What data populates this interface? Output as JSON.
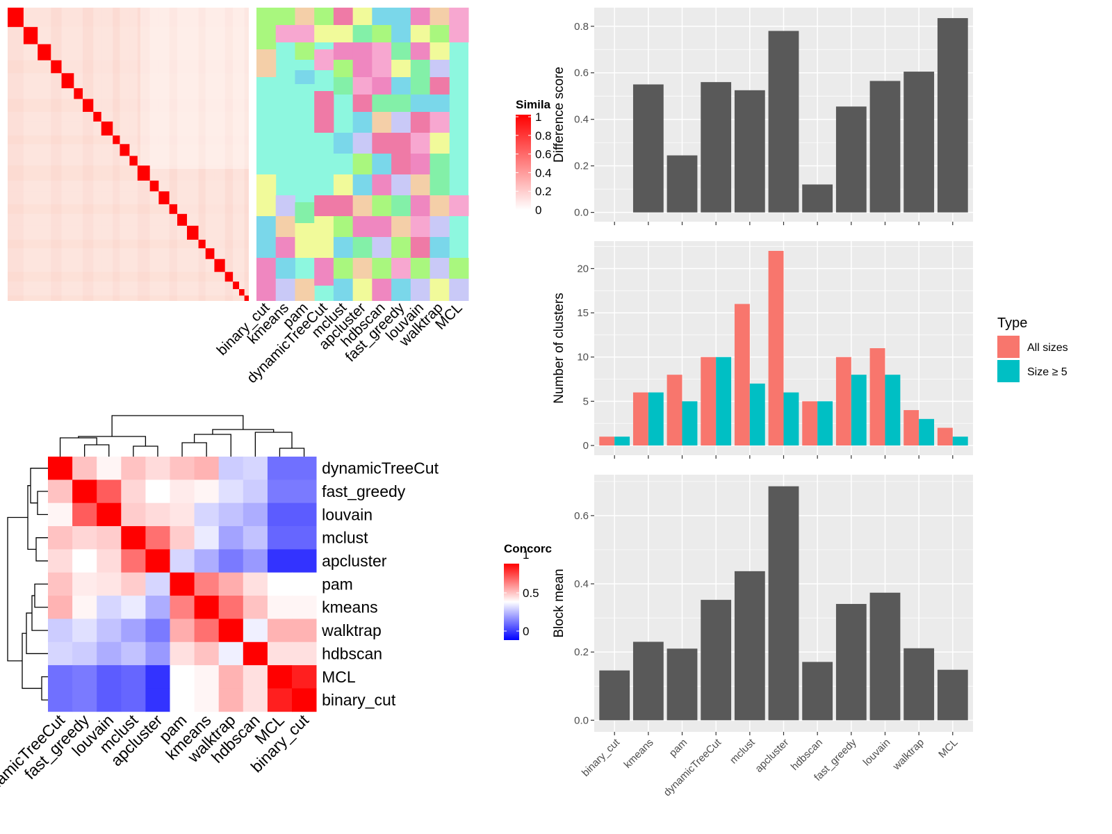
{
  "colors": {
    "panel_bg": "#ebebeb",
    "grid": "#ffffff",
    "bar_dark": "#595959",
    "all_sizes": "#f8766d",
    "size_ge5": "#00bfc4",
    "heat_red": "#ff0000",
    "heat_white": "#ffffff",
    "heat_blue": "#0000ff"
  },
  "similarity_heatmap": {
    "legend_title": "Simila",
    "legend_ticks": [
      "1",
      "0.8",
      "0.6",
      "0.4",
      "0.2",
      "0"
    ],
    "method_labels": [
      "binary_cut",
      "kmeans",
      "pam",
      "dynamicTreeCut",
      "mclust",
      "apcluster",
      "hdbscan",
      "fast_greedy",
      "louvain",
      "walktrap",
      "MCL"
    ],
    "method_label_icon": "rotated-column-labels",
    "cluster_palette": [
      "#8df7df",
      "#f7a7d0",
      "#f1fa9a",
      "#7ad7ea",
      "#ef87c0",
      "#a9f77e",
      "#f4cfa8",
      "#83f0a8",
      "#c9c9f7",
      "#ef7aa6"
    ]
  },
  "concordance_heatmap": {
    "legend_title": "Concorc",
    "legend_ticks": [
      "1",
      "0.5",
      "0"
    ],
    "methods": [
      "dynamicTreeCut",
      "fast_greedy",
      "louvain",
      "mclust",
      "apcluster",
      "pam",
      "kmeans",
      "walktrap",
      "hdbscan",
      "MCL",
      "binary_cut"
    ],
    "matrix": [
      [
        1.0,
        0.62,
        0.52,
        0.62,
        0.57,
        0.62,
        0.65,
        0.4,
        0.42,
        0.22,
        0.22
      ],
      [
        0.62,
        1.0,
        0.82,
        0.58,
        0.5,
        0.54,
        0.52,
        0.44,
        0.4,
        0.24,
        0.24
      ],
      [
        0.52,
        0.82,
        1.0,
        0.6,
        0.57,
        0.55,
        0.42,
        0.38,
        0.34,
        0.18,
        0.18
      ],
      [
        0.62,
        0.58,
        0.6,
        1.0,
        0.78,
        0.6,
        0.46,
        0.32,
        0.38,
        0.2,
        0.2
      ],
      [
        0.57,
        0.5,
        0.57,
        0.78,
        1.0,
        0.42,
        0.34,
        0.24,
        0.3,
        0.1,
        0.1
      ],
      [
        0.62,
        0.54,
        0.55,
        0.6,
        0.42,
        1.0,
        0.75,
        0.66,
        0.56,
        0.5,
        0.5
      ],
      [
        0.65,
        0.52,
        0.42,
        0.46,
        0.34,
        0.75,
        1.0,
        0.78,
        0.62,
        0.52,
        0.52
      ],
      [
        0.4,
        0.44,
        0.38,
        0.32,
        0.24,
        0.66,
        0.78,
        1.0,
        0.47,
        0.65,
        0.65
      ],
      [
        0.42,
        0.4,
        0.34,
        0.38,
        0.3,
        0.56,
        0.62,
        0.47,
        1.0,
        0.56,
        0.56
      ],
      [
        0.22,
        0.24,
        0.18,
        0.2,
        0.1,
        0.5,
        0.52,
        0.65,
        0.56,
        1.0,
        0.94
      ],
      [
        0.22,
        0.24,
        0.18,
        0.2,
        0.1,
        0.5,
        0.52,
        0.65,
        0.56,
        0.94,
        1.0
      ]
    ]
  },
  "chart_data": [
    {
      "type": "bar",
      "categories": [
        "binary_cut",
        "kmeans",
        "pam",
        "dynamicTreeCut",
        "mclust",
        "apcluster",
        "hdbscan",
        "fast_greedy",
        "louvain",
        "walktrap",
        "MCL"
      ],
      "values": [
        0.0,
        0.55,
        0.245,
        0.56,
        0.525,
        0.78,
        0.12,
        0.455,
        0.565,
        0.605,
        0.835
      ],
      "ylabel": "Difference score",
      "xlabel": "",
      "ylim": [
        -0.04,
        0.88
      ],
      "yticks": [
        "0.0",
        "0.2",
        "0.4",
        "0.6",
        "0.8"
      ],
      "grid": true
    },
    {
      "type": "bar",
      "categories": [
        "binary_cut",
        "kmeans",
        "pam",
        "dynamicTreeCut",
        "mclust",
        "apcluster",
        "hdbscan",
        "fast_greedy",
        "louvain",
        "walktrap",
        "MCL"
      ],
      "series": [
        {
          "name": "All sizes",
          "values": [
            1,
            6,
            8,
            10,
            16,
            22,
            5,
            10,
            11,
            4,
            2
          ]
        },
        {
          "name": "Size ≥ 5",
          "values": [
            1,
            6,
            5,
            10,
            7,
            6,
            5,
            8,
            8,
            3,
            1
          ]
        }
      ],
      "ylabel": "Number of clusters",
      "xlabel": "",
      "ylim": [
        -1.1,
        23.1
      ],
      "yticks": [
        "0",
        "5",
        "10",
        "15",
        "20"
      ],
      "legend_title": "Type",
      "legend_position": "right",
      "grid": true
    },
    {
      "type": "bar",
      "categories": [
        "binary_cut",
        "kmeans",
        "pam",
        "dynamicTreeCut",
        "mclust",
        "apcluster",
        "hdbscan",
        "fast_greedy",
        "louvain",
        "walktrap",
        "MCL"
      ],
      "values": [
        0.146,
        0.23,
        0.21,
        0.353,
        0.437,
        0.686,
        0.171,
        0.341,
        0.374,
        0.211,
        0.148
      ],
      "ylabel": "Block mean",
      "xlabel": "",
      "ylim": [
        -0.034,
        0.72
      ],
      "yticks": [
        "0.0",
        "0.2",
        "0.4",
        "0.6"
      ],
      "grid": true
    }
  ]
}
